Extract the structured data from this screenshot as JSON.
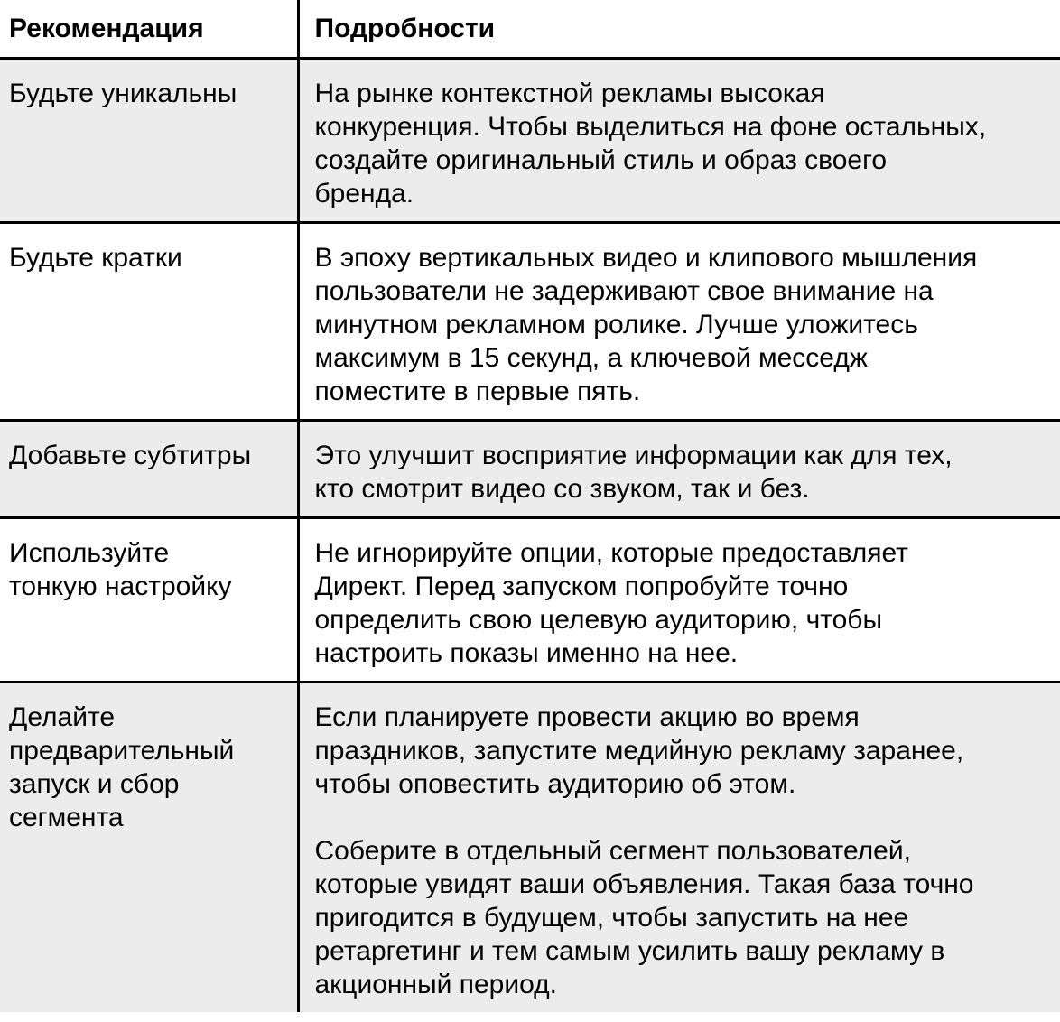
{
  "colors": {
    "background": "#ffffff",
    "row_stripe": "#ececec",
    "border": "#000000",
    "text": "#000000"
  },
  "table": {
    "columns": [
      {
        "label": "Рекомендация"
      },
      {
        "label": "Подробности"
      }
    ],
    "rows": [
      {
        "recommendation_lines": [
          "Будьте уникальны"
        ],
        "details_paragraphs": [
          [
            "На рынке контекстной рекламы высокая",
            "конкуренция. Чтобы выделиться на фоне остальных,",
            "создайте оригинальный стиль и образ своего",
            "бренда."
          ]
        ]
      },
      {
        "recommendation_lines": [
          "Будьте кратки"
        ],
        "details_paragraphs": [
          [
            "В эпоху вертикальных видео и клипового мышления",
            "пользователи не задерживают свое внимание на",
            "минутном рекламном ролике. Лучше уложитесь",
            "максимум в 15 секунд, а ключевой месседж",
            "поместите в первые пять."
          ]
        ]
      },
      {
        "recommendation_lines": [
          "Добавьте субтитры"
        ],
        "details_paragraphs": [
          [
            "Это улучшит восприятие информации как для тех,",
            "кто смотрит видео со звуком, так и без."
          ]
        ]
      },
      {
        "recommendation_lines": [
          "Используйте",
          "тонкую настройку"
        ],
        "details_paragraphs": [
          [
            "Не игнорируйте опции, которые предоставляет",
            "Директ. Перед запуском попробуйте точно",
            "определить свою целевую аудиторию, чтобы",
            "настроить показы именно на нее."
          ]
        ]
      },
      {
        "recommendation_lines": [
          "Делайте",
          "предварительный",
          "запуск и сбор",
          "сегмента"
        ],
        "details_paragraphs": [
          [
            "Если планируете провести акцию во время",
            "праздников, запустите медийную рекламу заранее,",
            "чтобы оповестить аудиторию об этом."
          ],
          [
            "Соберите в отдельный сегмент пользователей,",
            "которые увидят ваши объявления. Такая база точно",
            "пригодится в будущем, чтобы запустить на нее",
            "ретаргетинг и тем самым усилить вашу рекламу в",
            "акционный период."
          ]
        ]
      }
    ]
  }
}
